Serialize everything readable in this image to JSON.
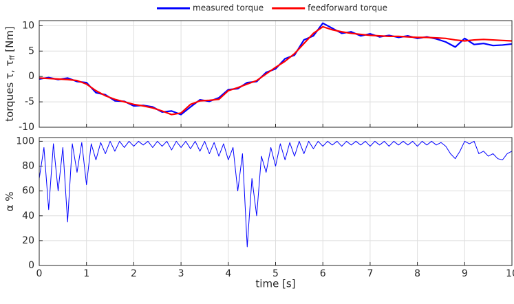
{
  "chart_data": [
    {
      "type": "line",
      "legend": "top",
      "ylabel": [
        "torques τ, τ",
        "ff",
        " [Nm]"
      ],
      "x": [
        0,
        0.2,
        0.4,
        0.6,
        0.8,
        1,
        1.2,
        1.4,
        1.6,
        1.8,
        2,
        2.2,
        2.4,
        2.6,
        2.8,
        3,
        3.2,
        3.4,
        3.6,
        3.8,
        4,
        4.2,
        4.4,
        4.6,
        4.8,
        5,
        5.2,
        5.4,
        5.6,
        5.8,
        6,
        6.2,
        6.4,
        6.6,
        6.8,
        7,
        7.2,
        7.4,
        7.6,
        7.8,
        8,
        8.2,
        8.4,
        8.6,
        8.8,
        9,
        9.2,
        9.4,
        9.6,
        9.8,
        10
      ],
      "series": [
        {
          "name": "measured torque",
          "color": "#0000ff",
          "values": [
            -0.5,
            -0.2,
            -0.6,
            -0.3,
            -1.0,
            -1.2,
            -3.2,
            -3.6,
            -4.8,
            -4.9,
            -5.8,
            -5.7,
            -6.0,
            -7.0,
            -6.8,
            -7.5,
            -6.0,
            -4.6,
            -4.9,
            -4.2,
            -2.6,
            -2.4,
            -1.2,
            -1.0,
            0.8,
            1.5,
            3.5,
            4.2,
            7.2,
            8.0,
            10.5,
            9.5,
            8.5,
            8.8,
            8.0,
            8.4,
            7.8,
            8.1,
            7.7,
            8.0,
            7.5,
            7.8,
            7.4,
            6.8,
            5.8,
            7.5,
            6.3,
            6.5,
            6.1,
            6.2,
            6.4
          ]
        },
        {
          "name": "feedforward torque",
          "color": "#ff0000",
          "values": [
            -0.3,
            -0.4,
            -0.5,
            -0.6,
            -0.8,
            -1.5,
            -2.8,
            -3.8,
            -4.5,
            -5.0,
            -5.5,
            -5.8,
            -6.2,
            -6.8,
            -7.5,
            -7.2,
            -5.5,
            -4.8,
            -4.7,
            -4.5,
            -2.8,
            -2.2,
            -1.5,
            -0.8,
            0.5,
            1.8,
            3.0,
            4.5,
            6.5,
            8.5,
            9.8,
            9.2,
            8.8,
            8.5,
            8.3,
            8.1,
            8.0,
            7.9,
            7.9,
            7.8,
            7.7,
            7.7,
            7.6,
            7.5,
            7.2,
            7.0,
            7.2,
            7.3,
            7.2,
            7.1,
            7.0
          ]
        }
      ],
      "xlim": [
        0,
        10
      ],
      "xticks": [
        0,
        1,
        2,
        3,
        4,
        5,
        6,
        7,
        8,
        9,
        10
      ],
      "xtick_labels": false,
      "ylim": [
        -10,
        11
      ],
      "yticks": [
        -10,
        -5,
        0,
        5,
        10
      ],
      "grid": true
    },
    {
      "type": "line",
      "ylabel": [
        "α %"
      ],
      "xlabel": "time [s]",
      "x": [
        0,
        0.1,
        0.2,
        0.3,
        0.4,
        0.5,
        0.6,
        0.7,
        0.8,
        0.9,
        1,
        1.1,
        1.2,
        1.3,
        1.4,
        1.5,
        1.6,
        1.7,
        1.8,
        1.9,
        2,
        2.1,
        2.2,
        2.3,
        2.4,
        2.5,
        2.6,
        2.7,
        2.8,
        2.9,
        3,
        3.1,
        3.2,
        3.3,
        3.4,
        3.5,
        3.6,
        3.7,
        3.8,
        3.9,
        4,
        4.1,
        4.2,
        4.3,
        4.4,
        4.5,
        4.6,
        4.7,
        4.8,
        4.9,
        5,
        5.1,
        5.2,
        5.3,
        5.4,
        5.5,
        5.6,
        5.7,
        5.8,
        5.9,
        6,
        6.1,
        6.2,
        6.3,
        6.4,
        6.5,
        6.6,
        6.7,
        6.8,
        6.9,
        7,
        7.1,
        7.2,
        7.3,
        7.4,
        7.5,
        7.6,
        7.7,
        7.8,
        7.9,
        8,
        8.1,
        8.2,
        8.3,
        8.4,
        8.5,
        8.6,
        8.7,
        8.8,
        8.9,
        9,
        9.1,
        9.2,
        9.3,
        9.4,
        9.5,
        9.6,
        9.7,
        9.8,
        9.9,
        10
      ],
      "series": [
        {
          "name": "α",
          "color": "#0000ff",
          "values": [
            70,
            95,
            45,
            98,
            60,
            95,
            35,
            98,
            75,
            99,
            65,
            98,
            85,
            99,
            90,
            100,
            92,
            100,
            95,
            100,
            96,
            100,
            97,
            100,
            95,
            100,
            96,
            100,
            93,
            100,
            95,
            100,
            94,
            100,
            92,
            100,
            90,
            99,
            88,
            98,
            85,
            95,
            60,
            90,
            15,
            70,
            40,
            88,
            75,
            95,
            80,
            98,
            85,
            99,
            88,
            100,
            90,
            100,
            94,
            100,
            96,
            100,
            97,
            100,
            96,
            100,
            97,
            100,
            97,
            100,
            96,
            100,
            97,
            100,
            96,
            100,
            97,
            100,
            97,
            100,
            96,
            100,
            97,
            100,
            97,
            99,
            96,
            90,
            86,
            92,
            100,
            98,
            100,
            90,
            92,
            88,
            90,
            86,
            85,
            90,
            92
          ]
        }
      ],
      "xlim": [
        0,
        10
      ],
      "xticks": [
        0,
        1,
        2,
        3,
        4,
        5,
        6,
        7,
        8,
        9,
        10
      ],
      "xtick_labels": true,
      "ylim": [
        0,
        103
      ],
      "yticks": [
        0,
        20,
        40,
        60,
        80,
        100
      ],
      "grid": true
    }
  ]
}
